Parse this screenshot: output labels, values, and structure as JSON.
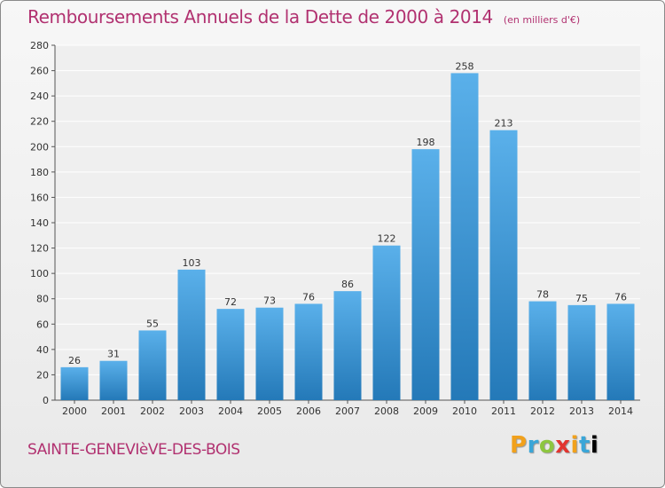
{
  "title": "Remboursements Annuels de la Dette de 2000 à 2014",
  "subtitle": "(en milliers d'€)",
  "commune": "SAINTE-GENEVIèVE-DES-BOIS",
  "logo_text": [
    "P",
    "r",
    "o",
    "x",
    "i",
    "t",
    "i"
  ],
  "colors": {
    "title": "#b13170",
    "bar_light": "#5ab0ea",
    "bar_dark": "#2479b8",
    "grid": "#ffffff",
    "background": "#efefef"
  },
  "chart_data": {
    "type": "bar",
    "categories": [
      "2000",
      "2001",
      "2002",
      "2003",
      "2004",
      "2005",
      "2006",
      "2007",
      "2008",
      "2009",
      "2010",
      "2011",
      "2012",
      "2013",
      "2014"
    ],
    "values": [
      26,
      31,
      55,
      103,
      72,
      73,
      76,
      86,
      122,
      198,
      258,
      213,
      78,
      75,
      76
    ],
    "ylim": [
      0,
      280
    ],
    "yticks": [
      0,
      20,
      40,
      60,
      80,
      100,
      120,
      140,
      160,
      180,
      200,
      220,
      240,
      260,
      280
    ],
    "grid": true
  }
}
